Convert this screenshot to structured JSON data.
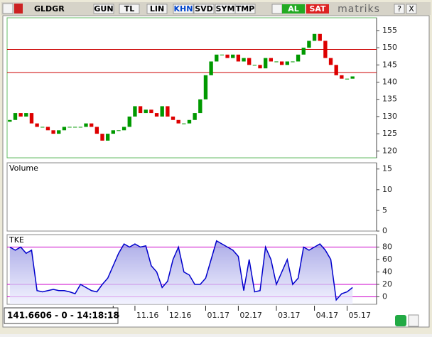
{
  "toolbar": {
    "symbol": "GLDGR",
    "buttons": [
      "GUN",
      "TL",
      "LIN",
      "KHN",
      "SVD",
      "SYM",
      "TMP"
    ],
    "active": "KHN",
    "buy": "AL",
    "sell": "SAT",
    "brand": "matriks",
    "help": "?",
    "close": "X"
  },
  "status": "141.6606 - 0 - 14:18:18",
  "x_axis": {
    "categories": [
      null,
      null,
      null,
      null,
      null,
      null,
      null,
      null,
      null,
      null,
      null,
      null,
      null,
      null,
      null,
      null,
      null,
      null,
      null,
      "6",
      null,
      null,
      null,
      "11.16",
      null,
      null,
      null,
      null,
      null,
      "12.16",
      null,
      null,
      null,
      null,
      null,
      null,
      "01.17",
      null,
      null,
      null,
      null,
      null,
      "02.17",
      null,
      null,
      null,
      null,
      null,
      null,
      "03.17",
      null,
      null,
      null,
      null,
      null,
      null,
      "04.17",
      null,
      null,
      null,
      null,
      null,
      "05.17",
      null
    ]
  },
  "chart_data": [
    {
      "type": "candlestick",
      "up_color": "#009900",
      "down_color": "#dd0000",
      "levels": [
        149.5,
        142.8
      ],
      "level_color": "#cc0000",
      "open": [
        128.5,
        129,
        131,
        130,
        131,
        128,
        127,
        127,
        126,
        125,
        126,
        127,
        127,
        127,
        127,
        128,
        127,
        125,
        123,
        125,
        126,
        126,
        127,
        130,
        133,
        131,
        132,
        131,
        130,
        133,
        130,
        129,
        128,
        128,
        129,
        131,
        135,
        142,
        146,
        148,
        148,
        147,
        148,
        146,
        147,
        145,
        145,
        144,
        147,
        146,
        146,
        145,
        146,
        146,
        148,
        150,
        152,
        154,
        152,
        147,
        145,
        142,
        141,
        141
      ],
      "close": [
        129,
        131,
        130,
        131,
        128,
        127,
        127,
        126,
        125,
        126,
        127,
        127,
        127,
        127,
        128,
        127,
        125,
        123,
        125,
        126,
        126,
        127,
        130,
        133,
        131,
        132,
        131,
        130,
        133,
        130,
        129,
        128,
        128,
        129,
        131,
        135,
        142,
        146,
        148,
        148,
        147,
        148,
        146,
        147,
        145,
        145,
        144,
        147,
        146,
        146,
        145,
        146,
        146,
        148,
        150,
        152,
        154,
        152,
        147,
        145,
        142,
        141,
        141,
        141.6606
      ],
      "ylim": [
        118,
        158.7
      ],
      "yticks": [
        120,
        125,
        130,
        135,
        140,
        145,
        150,
        155
      ]
    },
    {
      "type": "bar",
      "title": "Volume",
      "ylim": [
        0,
        16.5
      ],
      "yticks": [
        0,
        5,
        10,
        15
      ]
    },
    {
      "type": "area",
      "title": "TKE",
      "color": "#0000cc",
      "levels": [
        80,
        20,
        0
      ],
      "level_color": "#cc00cc",
      "values": [
        80,
        75,
        80,
        70,
        75,
        10,
        8,
        10,
        12,
        10,
        10,
        8,
        5,
        20,
        15,
        10,
        8,
        20,
        30,
        50,
        70,
        85,
        80,
        85,
        80,
        82,
        50,
        40,
        15,
        25,
        60,
        80,
        40,
        35,
        20,
        20,
        30,
        60,
        90,
        85,
        80,
        75,
        65,
        10,
        60,
        8,
        10,
        80,
        60,
        20,
        40,
        60,
        20,
        30,
        80,
        75,
        80,
        85,
        75,
        60,
        -5,
        5,
        8,
        15
      ],
      "ylim": [
        -12,
        100
      ],
      "yticks": [
        0,
        20,
        40,
        60,
        80
      ]
    }
  ]
}
